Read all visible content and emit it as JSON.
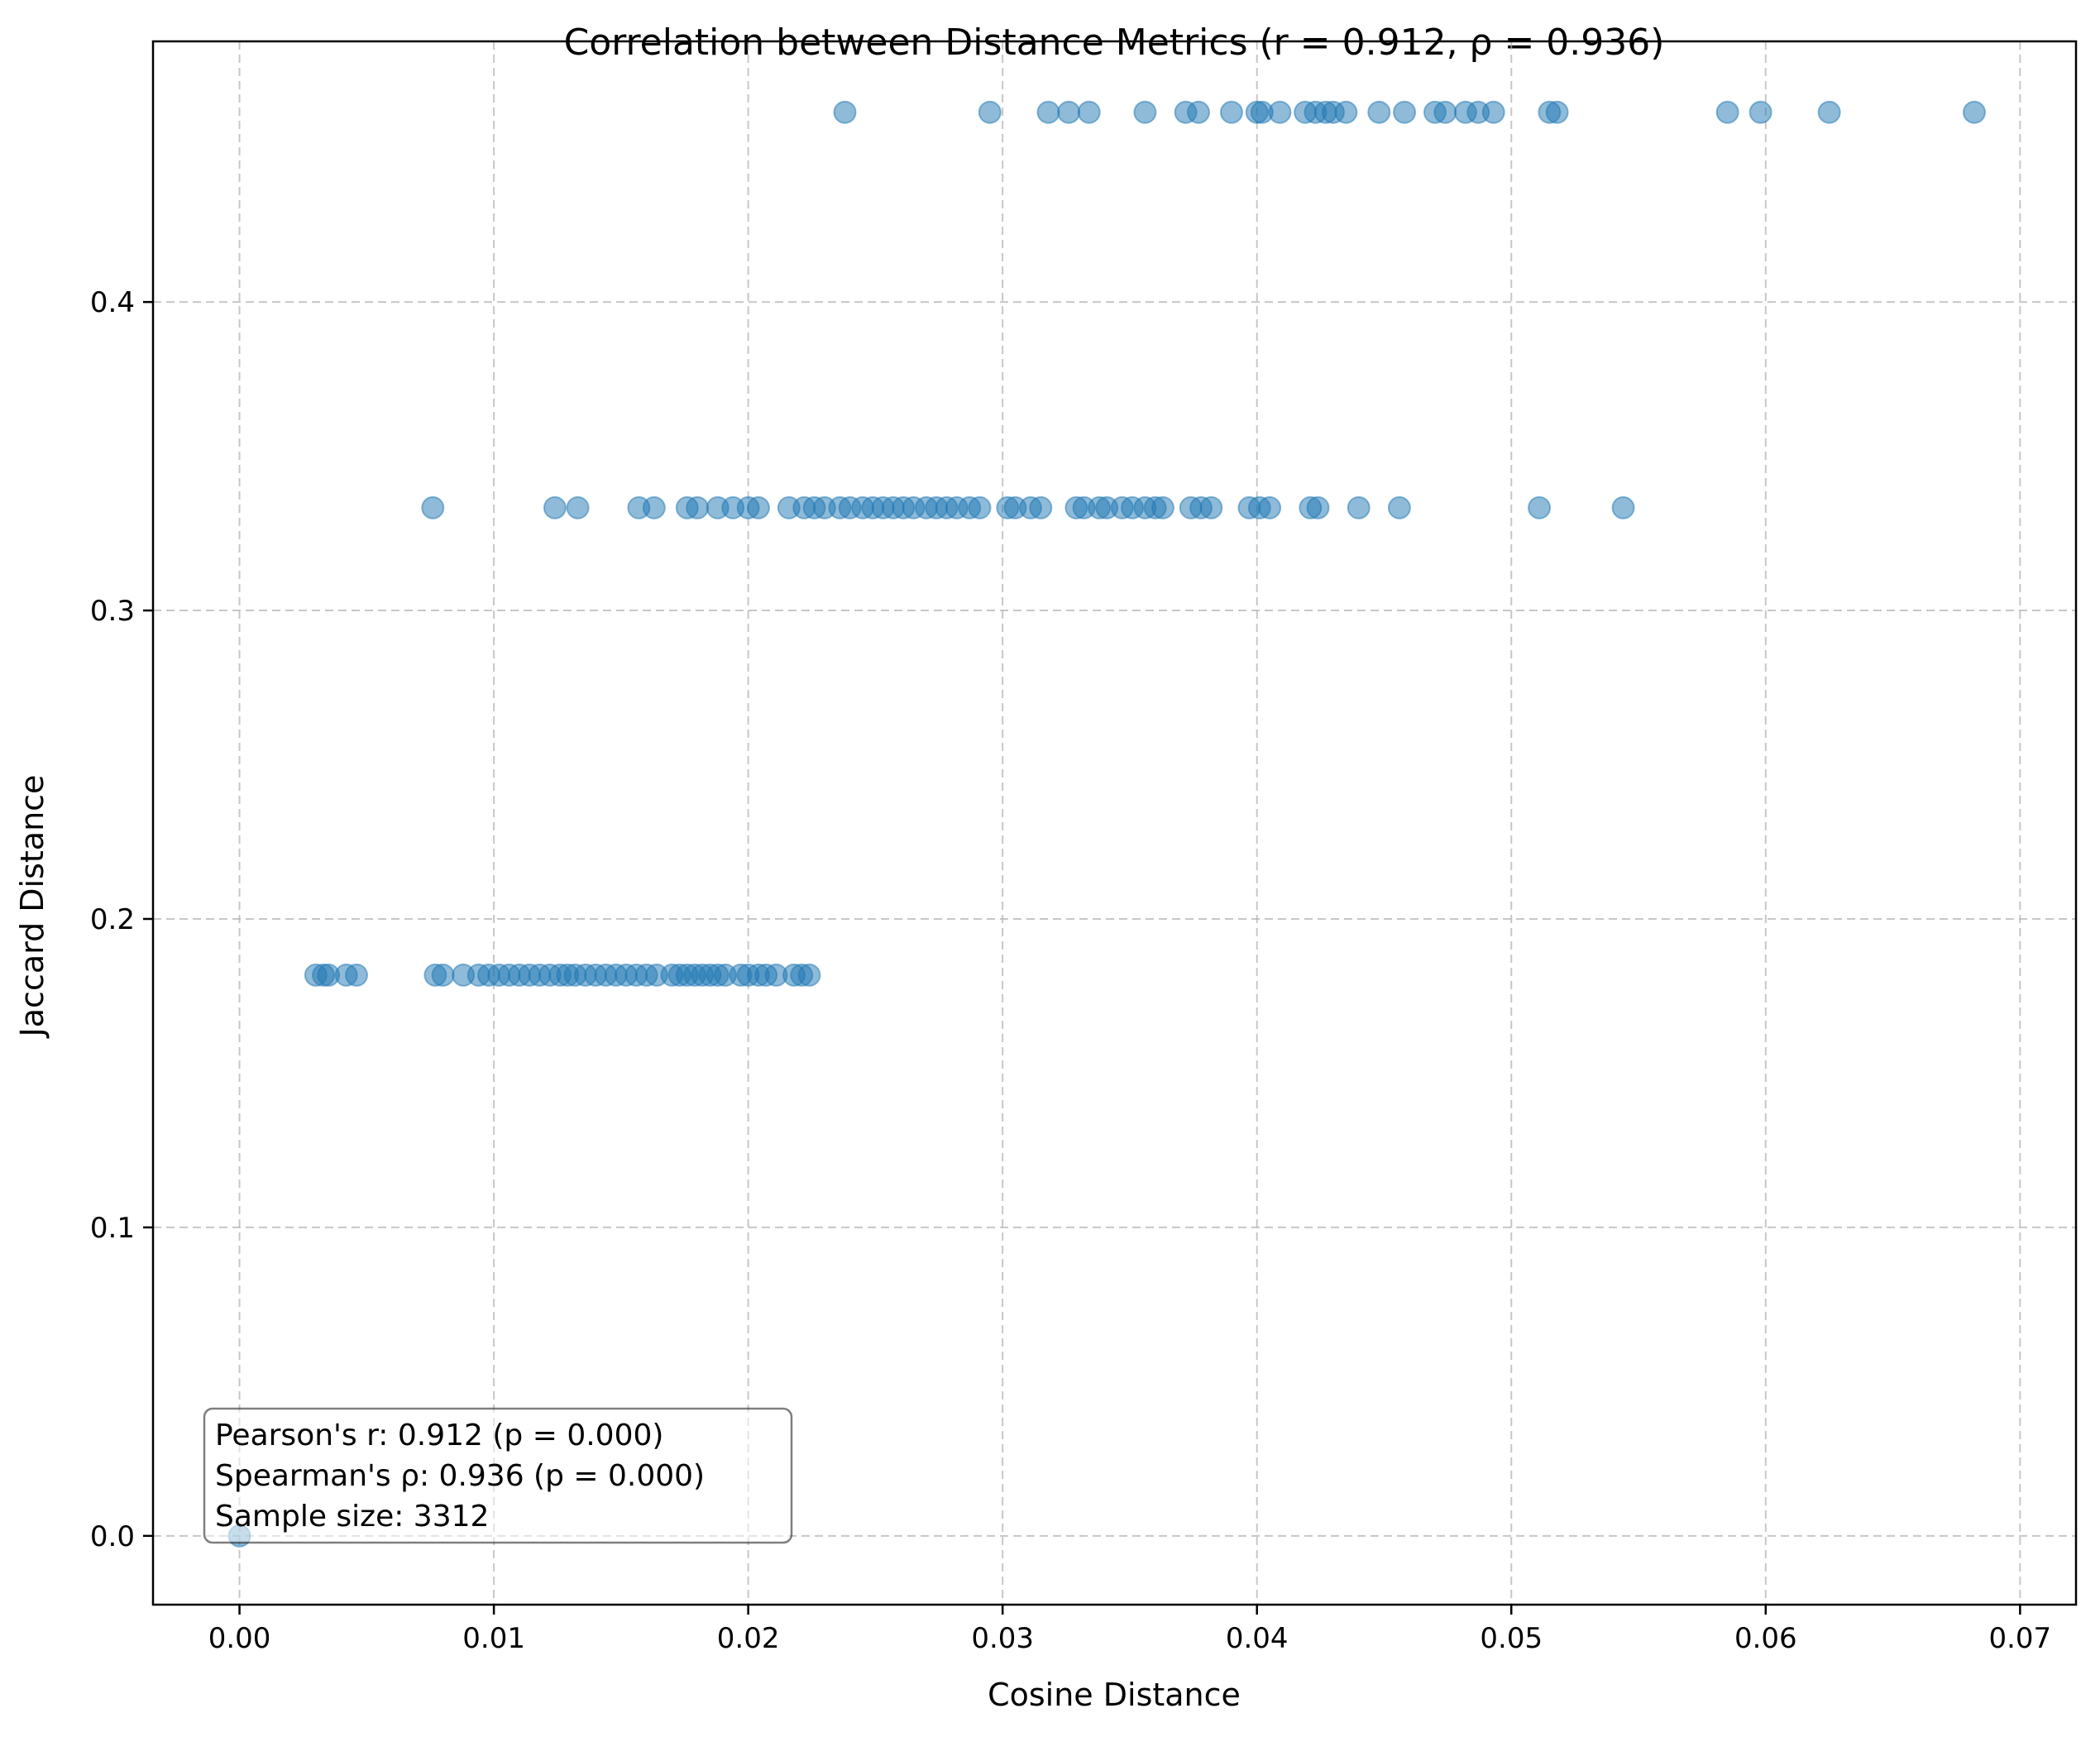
{
  "chart_data": {
    "type": "scatter",
    "title": "Correlation between Distance Metrics (r = 0.912, ρ = 0.936)",
    "xlabel": "Cosine Distance",
    "ylabel": "Jaccard Distance",
    "xlim": [
      -0.0034,
      0.0722
    ],
    "ylim": [
      -0.0223,
      0.4845
    ],
    "xticks": [
      0.0,
      0.01,
      0.02,
      0.03,
      0.04,
      0.05,
      0.06,
      0.07
    ],
    "xtick_labels": [
      "0.00",
      "0.01",
      "0.02",
      "0.03",
      "0.04",
      "0.05",
      "0.06",
      "0.07"
    ],
    "yticks": [
      0.0,
      0.1,
      0.2,
      0.3,
      0.4
    ],
    "ytick_labels": [
      "0.0",
      "0.1",
      "0.2",
      "0.3",
      "0.4"
    ],
    "grid": true,
    "marker_color": "#1f77b4",
    "marker_alpha": 0.5,
    "points": [
      {
        "x": 0.0,
        "y": 0.0
      },
      {
        "x": 0.003,
        "y": 0.1818
      },
      {
        "x": 0.0033,
        "y": 0.1818
      },
      {
        "x": 0.0035,
        "y": 0.1818
      },
      {
        "x": 0.0042,
        "y": 0.1818
      },
      {
        "x": 0.0046,
        "y": 0.1818
      },
      {
        "x": 0.0077,
        "y": 0.1818
      },
      {
        "x": 0.008,
        "y": 0.1818
      },
      {
        "x": 0.0088,
        "y": 0.1818
      },
      {
        "x": 0.0094,
        "y": 0.1818
      },
      {
        "x": 0.0098,
        "y": 0.1818
      },
      {
        "x": 0.0102,
        "y": 0.1818
      },
      {
        "x": 0.0106,
        "y": 0.1818
      },
      {
        "x": 0.011,
        "y": 0.1818
      },
      {
        "x": 0.0114,
        "y": 0.1818
      },
      {
        "x": 0.0118,
        "y": 0.1818
      },
      {
        "x": 0.0122,
        "y": 0.1818
      },
      {
        "x": 0.0126,
        "y": 0.1818
      },
      {
        "x": 0.0129,
        "y": 0.1818
      },
      {
        "x": 0.0132,
        "y": 0.1818
      },
      {
        "x": 0.0136,
        "y": 0.1818
      },
      {
        "x": 0.014,
        "y": 0.1818
      },
      {
        "x": 0.0144,
        "y": 0.1818
      },
      {
        "x": 0.0148,
        "y": 0.1818
      },
      {
        "x": 0.0152,
        "y": 0.1818
      },
      {
        "x": 0.0156,
        "y": 0.1818
      },
      {
        "x": 0.016,
        "y": 0.1818
      },
      {
        "x": 0.0164,
        "y": 0.1818
      },
      {
        "x": 0.017,
        "y": 0.1818
      },
      {
        "x": 0.0173,
        "y": 0.1818
      },
      {
        "x": 0.0176,
        "y": 0.1818
      },
      {
        "x": 0.0179,
        "y": 0.1818
      },
      {
        "x": 0.0182,
        "y": 0.1818
      },
      {
        "x": 0.0185,
        "y": 0.1818
      },
      {
        "x": 0.0188,
        "y": 0.1818
      },
      {
        "x": 0.0191,
        "y": 0.1818
      },
      {
        "x": 0.0197,
        "y": 0.1818
      },
      {
        "x": 0.02,
        "y": 0.1818
      },
      {
        "x": 0.0204,
        "y": 0.1818
      },
      {
        "x": 0.0207,
        "y": 0.1818
      },
      {
        "x": 0.0211,
        "y": 0.1818
      },
      {
        "x": 0.0218,
        "y": 0.1818
      },
      {
        "x": 0.0221,
        "y": 0.1818
      },
      {
        "x": 0.0224,
        "y": 0.1818
      },
      {
        "x": 0.0076,
        "y": 0.3333
      },
      {
        "x": 0.0124,
        "y": 0.3333
      },
      {
        "x": 0.0133,
        "y": 0.3333
      },
      {
        "x": 0.0157,
        "y": 0.3333
      },
      {
        "x": 0.0163,
        "y": 0.3333
      },
      {
        "x": 0.0176,
        "y": 0.3333
      },
      {
        "x": 0.018,
        "y": 0.3333
      },
      {
        "x": 0.0188,
        "y": 0.3333
      },
      {
        "x": 0.0194,
        "y": 0.3333
      },
      {
        "x": 0.02,
        "y": 0.3333
      },
      {
        "x": 0.0204,
        "y": 0.3333
      },
      {
        "x": 0.0216,
        "y": 0.3333
      },
      {
        "x": 0.0222,
        "y": 0.3333
      },
      {
        "x": 0.0226,
        "y": 0.3333
      },
      {
        "x": 0.023,
        "y": 0.3333
      },
      {
        "x": 0.0236,
        "y": 0.3333
      },
      {
        "x": 0.024,
        "y": 0.3333
      },
      {
        "x": 0.0245,
        "y": 0.3333
      },
      {
        "x": 0.0249,
        "y": 0.3333
      },
      {
        "x": 0.0253,
        "y": 0.3333
      },
      {
        "x": 0.0257,
        "y": 0.3333
      },
      {
        "x": 0.0261,
        "y": 0.3333
      },
      {
        "x": 0.0265,
        "y": 0.3333
      },
      {
        "x": 0.027,
        "y": 0.3333
      },
      {
        "x": 0.0274,
        "y": 0.3333
      },
      {
        "x": 0.0278,
        "y": 0.3333
      },
      {
        "x": 0.0282,
        "y": 0.3333
      },
      {
        "x": 0.0287,
        "y": 0.3333
      },
      {
        "x": 0.0291,
        "y": 0.3333
      },
      {
        "x": 0.0302,
        "y": 0.3333
      },
      {
        "x": 0.0305,
        "y": 0.3333
      },
      {
        "x": 0.0311,
        "y": 0.3333
      },
      {
        "x": 0.0315,
        "y": 0.3333
      },
      {
        "x": 0.0329,
        "y": 0.3333
      },
      {
        "x": 0.0332,
        "y": 0.3333
      },
      {
        "x": 0.0338,
        "y": 0.3333
      },
      {
        "x": 0.0341,
        "y": 0.3333
      },
      {
        "x": 0.0347,
        "y": 0.3333
      },
      {
        "x": 0.0351,
        "y": 0.3333
      },
      {
        "x": 0.0356,
        "y": 0.3333
      },
      {
        "x": 0.036,
        "y": 0.3333
      },
      {
        "x": 0.0363,
        "y": 0.3333
      },
      {
        "x": 0.0374,
        "y": 0.3333
      },
      {
        "x": 0.0378,
        "y": 0.3333
      },
      {
        "x": 0.0382,
        "y": 0.3333
      },
      {
        "x": 0.0397,
        "y": 0.3333
      },
      {
        "x": 0.0401,
        "y": 0.3333
      },
      {
        "x": 0.0405,
        "y": 0.3333
      },
      {
        "x": 0.0421,
        "y": 0.3333
      },
      {
        "x": 0.0424,
        "y": 0.3333
      },
      {
        "x": 0.044,
        "y": 0.3333
      },
      {
        "x": 0.0456,
        "y": 0.3333
      },
      {
        "x": 0.0511,
        "y": 0.3333
      },
      {
        "x": 0.0544,
        "y": 0.3333
      },
      {
        "x": 0.0238,
        "y": 0.4615
      },
      {
        "x": 0.0295,
        "y": 0.4615
      },
      {
        "x": 0.0318,
        "y": 0.4615
      },
      {
        "x": 0.0326,
        "y": 0.4615
      },
      {
        "x": 0.0334,
        "y": 0.4615
      },
      {
        "x": 0.0356,
        "y": 0.4615
      },
      {
        "x": 0.0372,
        "y": 0.4615
      },
      {
        "x": 0.0377,
        "y": 0.4615
      },
      {
        "x": 0.039,
        "y": 0.4615
      },
      {
        "x": 0.04,
        "y": 0.4615
      },
      {
        "x": 0.0402,
        "y": 0.4615
      },
      {
        "x": 0.0409,
        "y": 0.4615
      },
      {
        "x": 0.0419,
        "y": 0.4615
      },
      {
        "x": 0.0423,
        "y": 0.4615
      },
      {
        "x": 0.0427,
        "y": 0.4615
      },
      {
        "x": 0.043,
        "y": 0.4615
      },
      {
        "x": 0.0435,
        "y": 0.4615
      },
      {
        "x": 0.0448,
        "y": 0.4615
      },
      {
        "x": 0.0458,
        "y": 0.4615
      },
      {
        "x": 0.047,
        "y": 0.4615
      },
      {
        "x": 0.0474,
        "y": 0.4615
      },
      {
        "x": 0.0482,
        "y": 0.4615
      },
      {
        "x": 0.0487,
        "y": 0.4615
      },
      {
        "x": 0.0493,
        "y": 0.4615
      },
      {
        "x": 0.0515,
        "y": 0.4615
      },
      {
        "x": 0.0518,
        "y": 0.4615
      },
      {
        "x": 0.0585,
        "y": 0.4615
      },
      {
        "x": 0.0598,
        "y": 0.4615
      },
      {
        "x": 0.0625,
        "y": 0.4615
      },
      {
        "x": 0.0682,
        "y": 0.4615
      }
    ],
    "stats_box": {
      "lines": [
        "Pearson's r: 0.912 (p = 0.000)",
        "Spearman's ρ: 0.936 (p = 0.000)",
        "Sample size: 3312"
      ],
      "placement": "bottom-left"
    }
  }
}
